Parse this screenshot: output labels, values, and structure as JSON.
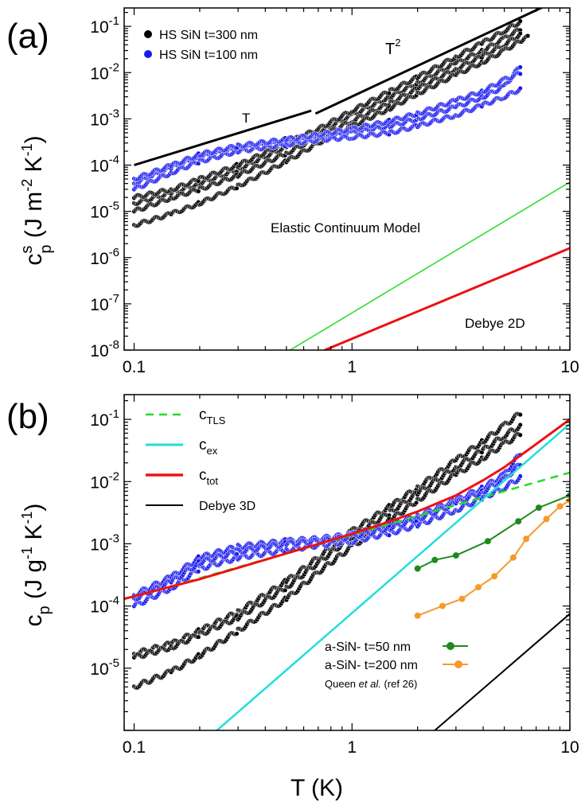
{
  "chart_data": [
    {
      "type": "scatter",
      "panel_label": "(a)",
      "ylabel": "c^s_p (J m^-2 K^-1)",
      "ylabel_parts": {
        "main": "c",
        "sup": "s",
        "sub": "p",
        "unit": "(J m",
        "u1": "-2",
        "u2": " K",
        "u3": "-1",
        "end": ")"
      },
      "xlabel": "",
      "xscale": "log",
      "yscale": "log",
      "xlim": [
        0.09,
        10
      ],
      "ylim": [
        1e-08,
        0.25
      ],
      "x_ticks": [
        "0.1",
        "1",
        "10"
      ],
      "y_ticks": [
        {
          "b": "10",
          "e": "-1"
        },
        {
          "b": "10",
          "e": "-2"
        },
        {
          "b": "10",
          "e": "-3"
        },
        {
          "b": "10",
          "e": "-4"
        },
        {
          "b": "10",
          "e": "-5"
        },
        {
          "b": "10",
          "e": "-6"
        },
        {
          "b": "10",
          "e": "-7"
        },
        {
          "b": "10",
          "e": "-8"
        }
      ],
      "legend": [
        {
          "label": "HS SiN t=300 nm",
          "color": "#000000"
        },
        {
          "label": "HS SiN t=100 nm",
          "color": "#1a1aee"
        }
      ],
      "annotations": {
        "t_label": "T",
        "t2_label": "T",
        "t2_sup": "2",
        "elastic": "Elastic Continuum Model",
        "debye2d": "Debye 2D"
      },
      "series": [
        {
          "key": "hs300",
          "color": "#000000",
          "kind": "points",
          "branches": [
            {
              "x": [
                0.1,
                0.15,
                0.2,
                0.3,
                0.5,
                0.7,
                1.0,
                1.5,
                2.0,
                3.0,
                4.0,
                5.0,
                6.0
              ],
              "y": [
                1.5e-05,
                2.5e-05,
                4e-05,
                8e-05,
                0.00025,
                0.0005,
                0.0012,
                0.003,
                0.006,
                0.016,
                0.03,
                0.055,
                0.09
              ]
            },
            {
              "x": [
                0.1,
                0.15,
                0.2,
                0.3,
                0.5,
                0.7,
                1.0,
                1.5,
                2.0,
                3.0,
                4.0,
                5.0,
                6.0
              ],
              "y": [
                1e-05,
                2e-05,
                3e-05,
                6e-05,
                0.00018,
                0.0004,
                0.0009,
                0.0022,
                0.0045,
                0.012,
                0.023,
                0.04,
                0.07
              ]
            },
            {
              "x": [
                0.1,
                0.15,
                0.2,
                0.3,
                0.5,
                0.7,
                1.0,
                1.5,
                2.0,
                3.0,
                4.0,
                5.0,
                6.0,
                6.5
              ],
              "y": [
                5e-06,
                9e-06,
                1.5e-05,
                3.5e-05,
                0.00012,
                0.0003,
                0.0007,
                0.0017,
                0.0035,
                0.009,
                0.017,
                0.03,
                0.05,
                0.06
              ]
            },
            {
              "x": [
                0.1,
                0.15,
                0.2,
                0.3,
                0.5,
                0.7,
                1.0,
                1.5,
                2.0,
                3.0,
                4.0,
                5.0,
                6.0
              ],
              "y": [
                2e-05,
                3e-05,
                5e-05,
                0.0001,
                0.0003,
                0.0006,
                0.0015,
                0.004,
                0.008,
                0.022,
                0.045,
                0.08,
                0.13
              ]
            }
          ]
        },
        {
          "key": "hs100",
          "color": "#1a1aee",
          "kind": "points",
          "branches": [
            {
              "x": [
                0.1,
                0.15,
                0.2,
                0.3,
                0.5,
                0.7,
                1.0,
                1.5,
                2.0,
                3.0,
                4.0,
                5.0,
                6.0
              ],
              "y": [
                4e-05,
                9e-05,
                0.00015,
                0.00023,
                0.00032,
                0.0004,
                0.0005,
                0.0007,
                0.001,
                0.0018,
                0.003,
                0.005,
                0.015
              ]
            },
            {
              "x": [
                0.1,
                0.15,
                0.2,
                0.3,
                0.5,
                0.7,
                1.0,
                1.5,
                2.0,
                3.0,
                4.0,
                5.0,
                6.0
              ],
              "y": [
                3e-05,
                7e-05,
                0.00012,
                0.0002,
                0.00028,
                0.00035,
                0.0004,
                0.0005,
                0.0007,
                0.0012,
                0.002,
                0.003,
                0.0045
              ]
            },
            {
              "x": [
                0.1,
                0.15,
                0.2,
                0.3,
                0.5,
                0.7,
                1.0,
                1.5,
                2.0,
                3.0,
                4.0,
                5.0,
                6.0
              ],
              "y": [
                5e-05,
                0.0001,
                0.00017,
                0.00026,
                0.00036,
                0.00045,
                0.0006,
                0.0009,
                0.0013,
                0.0025,
                0.004,
                0.007,
                0.01
              ]
            }
          ]
        },
        {
          "key": "fit_T",
          "color": "#000000",
          "kind": "line",
          "width": 3,
          "x": [
            0.1,
            0.65
          ],
          "y": [
            0.0001,
            0.0015
          ]
        },
        {
          "key": "fit_T2",
          "color": "#000000",
          "kind": "line",
          "width": 3,
          "x": [
            0.68,
            7.5
          ],
          "y": [
            0.0013,
            0.26
          ]
        },
        {
          "key": "elastic",
          "color": "#22dd22",
          "kind": "line",
          "width": 1.5,
          "x": [
            0.52,
            10
          ],
          "y": [
            1e-08,
            4.3e-05
          ]
        },
        {
          "key": "debye2d",
          "color": "#ee1111",
          "kind": "line",
          "width": 3,
          "x": [
            0.75,
            10
          ],
          "y": [
            1e-08,
            1.6e-06
          ]
        }
      ]
    },
    {
      "type": "scatter",
      "panel_label": "(b)",
      "ylabel": "c_p (J g^-1 K^-1)",
      "ylabel_parts": {
        "main": "c",
        "sub": "p",
        "unit": "(J g",
        "u1": "-1",
        "u2": " K",
        "u3": "-1",
        "end": ")"
      },
      "xlabel": "T (K)",
      "xscale": "log",
      "yscale": "log",
      "xlim": [
        0.09,
        10
      ],
      "ylim": [
        1e-06,
        0.25
      ],
      "x_ticks": [
        "0.1",
        "1",
        "10"
      ],
      "y_ticks": [
        {
          "b": "10",
          "e": "-1"
        },
        {
          "b": "10",
          "e": "-2"
        },
        {
          "b": "10",
          "e": "-3"
        },
        {
          "b": "10",
          "e": "-4"
        },
        {
          "b": "10",
          "e": "-5"
        }
      ],
      "legend": [
        {
          "label": "c",
          "sub": "TLS",
          "color": "#22dd22",
          "style": "dashed"
        },
        {
          "label": "c",
          "sub": "ex",
          "color": "#22dddd",
          "style": "solid"
        },
        {
          "label": "c",
          "sub": "tot",
          "color": "#ee1111",
          "style": "solid"
        },
        {
          "label": "Debye 3D",
          "color": "#000000",
          "style": "solid"
        }
      ],
      "legend2": [
        {
          "label": "a-SiN- t=50 nm",
          "color": "#1e8a1e"
        },
        {
          "label": "a-SiN- t=200 nm",
          "color": "#f59a2a"
        }
      ],
      "citation": {
        "pre": "Queen ",
        "italic": "et al.",
        "post": " (ref  26)"
      },
      "series": [
        {
          "key": "hs300_b",
          "color": "#000000",
          "kind": "points",
          "branches": [
            {
              "x": [
                0.1,
                0.15,
                0.2,
                0.3,
                0.5,
                0.7,
                1.0,
                1.5,
                2.0,
                3.0,
                4.0,
                5.0,
                6.0
              ],
              "y": [
                1.7e-05,
                2.5e-05,
                4e-05,
                8e-05,
                0.00025,
                0.0006,
                0.0016,
                0.004,
                0.008,
                0.022,
                0.045,
                0.08,
                0.13
              ]
            },
            {
              "x": [
                0.1,
                0.15,
                0.2,
                0.3,
                0.5,
                0.7,
                1.0,
                1.5,
                2.0,
                3.0,
                4.0,
                5.0,
                6.0
              ],
              "y": [
                1.5e-05,
                2.2e-05,
                3.5e-05,
                6.5e-05,
                0.0002,
                0.0005,
                0.0013,
                0.0032,
                0.0065,
                0.017,
                0.032,
                0.055,
                0.08
              ]
            },
            {
              "x": [
                0.1,
                0.15,
                0.2,
                0.3,
                0.5,
                0.7,
                1.0,
                1.5,
                2.0,
                3.0,
                4.0,
                5.0,
                6.0
              ],
              "y": [
                5e-06,
                9e-06,
                1.6e-05,
                4e-05,
                0.00013,
                0.00035,
                0.0009,
                0.0024,
                0.005,
                0.013,
                0.024,
                0.04,
                0.06
              ]
            }
          ]
        },
        {
          "key": "hs100_b",
          "color": "#1a1aee",
          "kind": "points",
          "branches": [
            {
              "x": [
                0.1,
                0.15,
                0.2,
                0.3,
                0.5,
                0.7,
                1.0,
                1.5,
                2.0,
                3.0,
                4.0,
                5.0,
                6.0
              ],
              "y": [
                0.00015,
                0.0003,
                0.0006,
                0.0009,
                0.0011,
                0.0012,
                0.0014,
                0.002,
                0.0028,
                0.005,
                0.008,
                0.013,
                0.03
              ]
            },
            {
              "x": [
                0.1,
                0.15,
                0.2,
                0.3,
                0.5,
                0.7,
                1.0,
                1.5,
                2.0,
                3.0,
                4.0,
                5.0,
                6.0
              ],
              "y": [
                0.0001,
                0.0002,
                0.0004,
                0.0006,
                0.0008,
                0.00095,
                0.0011,
                0.0015,
                0.002,
                0.0035,
                0.0055,
                0.008,
                0.012
              ]
            },
            {
              "x": [
                0.1,
                0.15,
                0.2,
                0.3,
                0.5,
                0.7,
                1.0,
                1.5,
                2.0,
                3.0,
                4.0,
                5.0,
                6.0
              ],
              "y": [
                0.00013,
                0.00025,
                0.0005,
                0.00075,
                0.001,
                0.0011,
                0.0013,
                0.0018,
                0.0025,
                0.0045,
                0.007,
                0.011,
                0.02
              ]
            }
          ]
        },
        {
          "key": "c_tls",
          "color": "#22dd22",
          "kind": "line",
          "width": 2.5,
          "dash": "10,7",
          "x": [
            0.1,
            0.2,
            0.3,
            0.5,
            0.7,
            1.0,
            2.0,
            3.0,
            5.0,
            10.0
          ],
          "y": [
            0.00014,
            0.00028,
            0.00042,
            0.0007,
            0.00098,
            0.0014,
            0.0028,
            0.0042,
            0.007,
            0.014
          ]
        },
        {
          "key": "c_ex",
          "color": "#22dddd",
          "kind": "line",
          "width": 2.5,
          "x": [
            0.24,
            10
          ],
          "y": [
            1e-06,
            0.085
          ]
        },
        {
          "key": "c_tot",
          "color": "#ee1111",
          "kind": "line",
          "width": 3,
          "x": [
            0.09,
            0.2,
            0.3,
            0.5,
            0.7,
            1.0,
            1.5,
            2.0,
            3.0,
            4.0,
            5.0,
            7.0,
            10.0
          ],
          "y": [
            0.00013,
            0.00027,
            0.00041,
            0.0007,
            0.00099,
            0.00145,
            0.0023,
            0.0033,
            0.006,
            0.0105,
            0.017,
            0.04,
            0.1
          ]
        },
        {
          "key": "debye3d",
          "color": "#000000",
          "kind": "line",
          "width": 2,
          "x": [
            2.4,
            10
          ],
          "y": [
            1e-06,
            7.5e-05
          ]
        },
        {
          "key": "asin50",
          "color": "#1e8a1e",
          "kind": "markers",
          "x": [
            2.0,
            2.4,
            3.0,
            4.2,
            5.8,
            7.2,
            10.0
          ],
          "y": [
            0.0004,
            0.00055,
            0.00065,
            0.0011,
            0.0023,
            0.0038,
            0.006
          ]
        },
        {
          "key": "asin200",
          "color": "#f59a2a",
          "kind": "markers",
          "x": [
            2.0,
            2.6,
            3.2,
            3.8,
            4.5,
            5.5,
            6.3,
            7.8,
            9.0,
            10.0
          ],
          "y": [
            7e-05,
            0.0001,
            0.00013,
            0.0002,
            0.0003,
            0.0006,
            0.0012,
            0.0025,
            0.004,
            0.005
          ]
        }
      ]
    }
  ]
}
